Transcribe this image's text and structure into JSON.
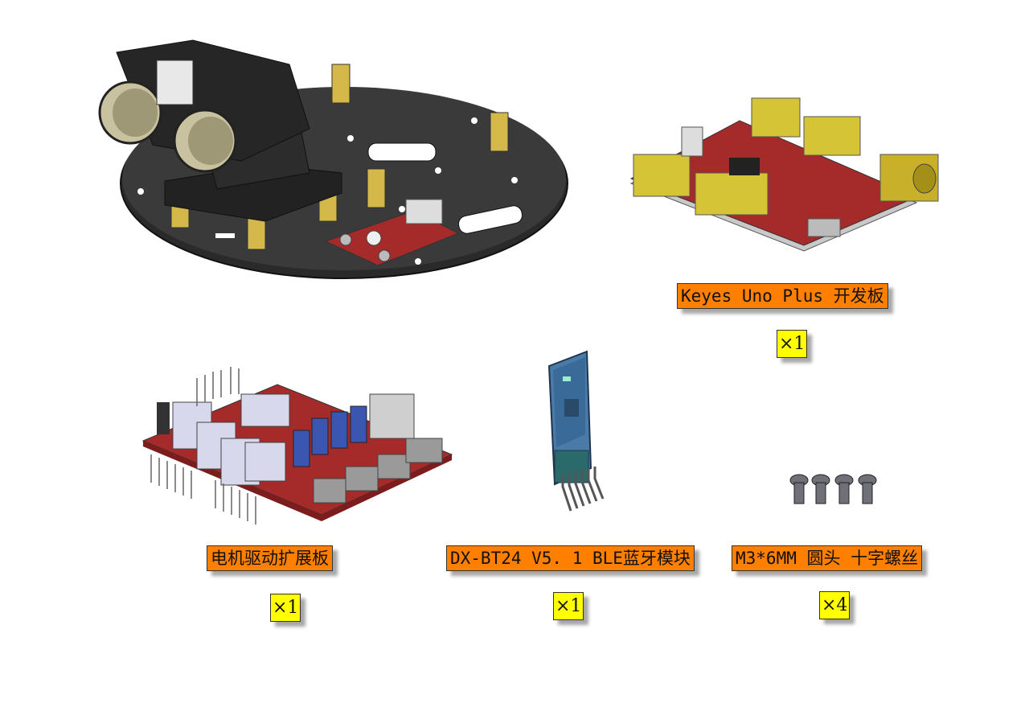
{
  "items": [
    {
      "label": "Keyes Uno Plus 开发板",
      "quantity": "×1"
    },
    {
      "label": "电机驱动扩展板",
      "quantity": "×1"
    },
    {
      "label": "DX-BT24 V5. 1 BLE蓝牙模块",
      "quantity": "×1"
    },
    {
      "label": "M3*6MM 圆头 十字螺丝",
      "quantity": "×4"
    }
  ],
  "colors": {
    "label_bg": "#ff7f00",
    "quantity_bg": "#ffff00",
    "pcb_red": "#a52a2a",
    "brass": "#d4b84a"
  }
}
